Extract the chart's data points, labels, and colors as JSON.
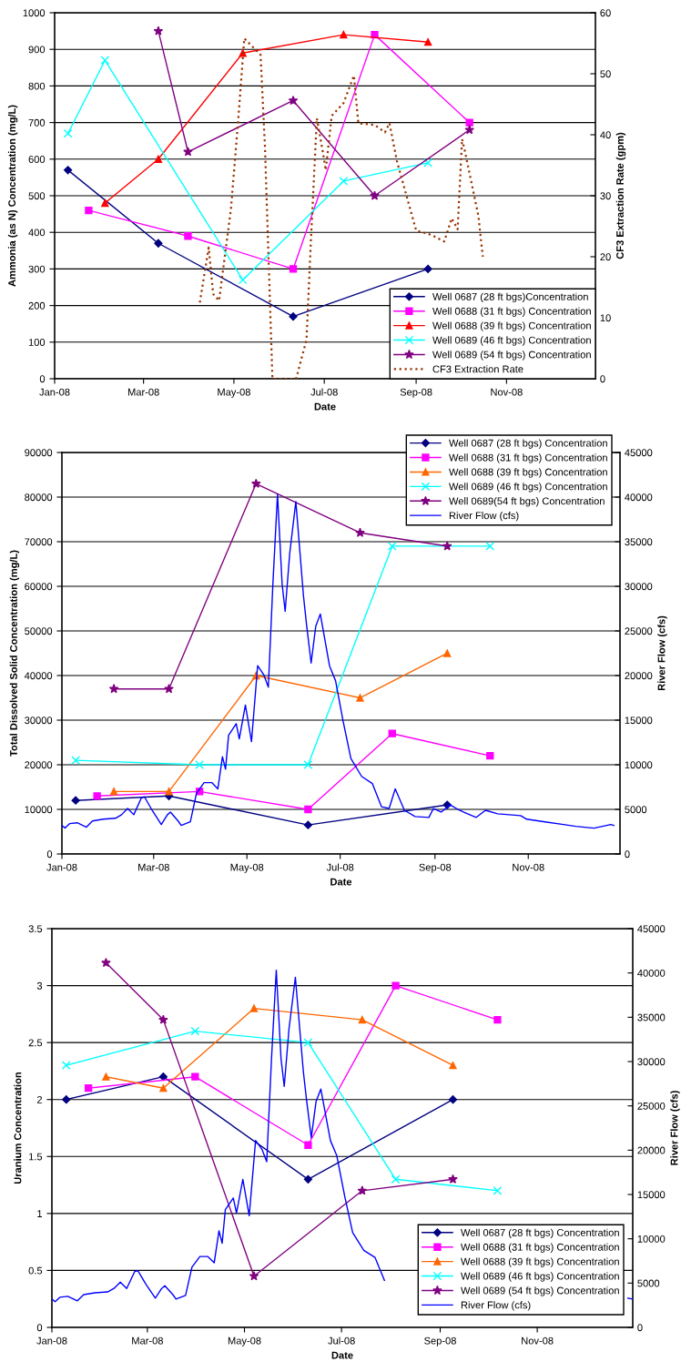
{
  "chart_data": [
    {
      "type": "line",
      "xlabel": "Date",
      "ylabel": "Ammonia (as N) Concentration (mg/L)",
      "y2label": "CF3 Extraction Rate (gpm)",
      "xlim": [
        "2008-01-01",
        "2008-12-31"
      ],
      "xticks": [
        {
          "value": "2008-01-01",
          "label": "Jan-08"
        },
        {
          "value": "2008-03-01",
          "label": "Mar-08"
        },
        {
          "value": "2008-05-01",
          "label": "May-08"
        },
        {
          "value": "2008-07-01",
          "label": "Jul-08"
        },
        {
          "value": "2008-09-01",
          "label": "Sep-08"
        },
        {
          "value": "2008-11-01",
          "label": "Nov-08"
        }
      ],
      "ylim": [
        0,
        1000
      ],
      "yticks": [
        0,
        100,
        200,
        300,
        400,
        500,
        600,
        700,
        800,
        900,
        1000
      ],
      "y2lim": [
        0,
        60
      ],
      "y2ticks": [
        0,
        10,
        20,
        30,
        40,
        50,
        60
      ],
      "grid": "y",
      "legend": "bottom right",
      "series": [
        {
          "name": "Well 0687 (28 ft bgs)Concentration",
          "color": "#000080",
          "marker": "diamond",
          "x": [
            "2008-01-10",
            "2008-03-11",
            "2008-06-10",
            "2008-09-09"
          ],
          "values": [
            570,
            370,
            170,
            300
          ]
        },
        {
          "name": "Well 0688 (31 ft bgs) Concentration",
          "color": "#ff00ff",
          "marker": "square",
          "x": [
            "2008-01-24",
            "2008-03-31",
            "2008-06-10",
            "2008-08-04",
            "2008-10-07"
          ],
          "values": [
            460,
            390,
            300,
            940,
            700
          ]
        },
        {
          "name": "Well 0688 (39 ft bgs) Concentration",
          "color": "#ff0000",
          "marker": "triangle",
          "x": [
            "2008-02-04",
            "2008-03-11",
            "2008-05-07",
            "2008-07-14",
            "2008-09-09"
          ],
          "values": [
            480,
            600,
            890,
            940,
            920
          ]
        },
        {
          "name": "Well 0689 (46 ft bgs) Concentration",
          "color": "#00ffff",
          "marker": "cross",
          "x": [
            "2008-01-10",
            "2008-02-04",
            "2008-05-07",
            "2008-07-14",
            "2008-09-09"
          ],
          "values": [
            670,
            870,
            270,
            540,
            590
          ]
        },
        {
          "name": "Well 0689 (54 ft bgs) Concentration",
          "color": "#800080",
          "marker": "star",
          "x": [
            "2008-03-11",
            "2008-03-31",
            "2008-06-10",
            "2008-08-04",
            "2008-10-07"
          ],
          "values": [
            950,
            620,
            760,
            500,
            680
          ]
        },
        {
          "name": "CF3 Extraction Rate",
          "color": "#993300",
          "marker": "none",
          "line_style": "dotted",
          "axis": "y2",
          "x": [
            "2008-04-08",
            "2008-04-14",
            "2008-04-17",
            "2008-04-21",
            "2008-04-29",
            "2008-05-04",
            "2008-05-08",
            "2008-05-19",
            "2008-05-22",
            "2008-05-27",
            "2008-06-12",
            "2008-06-19",
            "2008-06-22",
            "2008-06-26",
            "2008-06-30",
            "2008-07-02",
            "2008-07-06",
            "2008-07-14",
            "2008-07-21",
            "2008-07-24",
            "2008-08-04",
            "2008-08-11",
            "2008-08-14",
            "2008-08-19",
            "2008-09-01",
            "2008-09-11",
            "2008-09-20",
            "2008-09-25",
            "2008-09-29",
            "2008-10-02",
            "2008-10-04",
            "2008-10-13",
            "2008-10-16"
          ],
          "values": [
            12.5,
            21.5,
            13.9,
            12.8,
            27.8,
            42.7,
            55.8,
            53.1,
            37.8,
            0,
            0,
            6.4,
            22.8,
            42.7,
            37.2,
            34.2,
            43.1,
            45.2,
            49.7,
            41.9,
            41.6,
            40.4,
            41.9,
            35.7,
            24.3,
            23.6,
            22.5,
            26.3,
            24.5,
            39.3,
            37.2,
            26.7,
            20
          ]
        }
      ]
    },
    {
      "type": "line",
      "xlabel": "Date",
      "ylabel": "Total Dissolved Solid Concentration (mg/L)",
      "y2label": "River Flow (cfs)",
      "xlim": [
        "2008-01-01",
        "2008-12-31"
      ],
      "xticks": [
        {
          "value": "2008-01-01",
          "label": "Jan-08"
        },
        {
          "value": "2008-03-01",
          "label": "Mar-08"
        },
        {
          "value": "2008-05-01",
          "label": "May-08"
        },
        {
          "value": "2008-07-01",
          "label": "Jul-08"
        },
        {
          "value": "2008-09-01",
          "label": "Sep-08"
        },
        {
          "value": "2008-11-01",
          "label": "Nov-08"
        }
      ],
      "ylim": [
        0,
        90000
      ],
      "yticks": [
        0,
        10000,
        20000,
        30000,
        40000,
        50000,
        60000,
        70000,
        80000,
        90000
      ],
      "y2lim": [
        0,
        45000
      ],
      "y2ticks": [
        0,
        5000,
        10000,
        15000,
        20000,
        25000,
        30000,
        35000,
        40000,
        45000
      ],
      "grid": "y",
      "legend": "top right",
      "series": [
        {
          "name": "Well 0687 (28 ft bgs) Concentration",
          "color": "#000080",
          "marker": "diamond",
          "x": [
            "2008-01-10",
            "2008-03-11",
            "2008-06-10",
            "2008-09-09"
          ],
          "values": [
            12000,
            13000,
            6500,
            11000
          ]
        },
        {
          "name": "Well 0688 (31 ft bgs) Concentration",
          "color": "#ff00ff",
          "marker": "square",
          "x": [
            "2008-01-24",
            "2008-03-31",
            "2008-06-10",
            "2008-08-04",
            "2008-10-07"
          ],
          "values": [
            13000,
            14000,
            10000,
            27000,
            22000
          ]
        },
        {
          "name": "Well 0688 (39 ft bgs) Concentration",
          "color": "#ff6600",
          "marker": "triangle",
          "x": [
            "2008-02-04",
            "2008-03-11",
            "2008-05-07",
            "2008-07-14",
            "2008-09-09"
          ],
          "values": [
            14000,
            14000,
            40000,
            35000,
            45000
          ]
        },
        {
          "name": "Well 0689 (46 ft bgs) Concentration",
          "color": "#00ffff",
          "marker": "cross",
          "x": [
            "2008-01-10",
            "2008-03-31",
            "2008-06-10",
            "2008-08-04",
            "2008-10-07"
          ],
          "values": [
            21000,
            20000,
            20000,
            69000,
            69000
          ]
        },
        {
          "name": "Well 0689(54 ft bgs) Concentration",
          "color": "#800080",
          "marker": "star",
          "x": [
            "2008-02-04",
            "2008-03-11",
            "2008-05-07",
            "2008-07-14",
            "2008-09-09"
          ],
          "values": [
            37000,
            37000,
            83000,
            72000,
            69000
          ]
        },
        {
          "name": "River Flow (cfs)",
          "color": "#0000ff",
          "marker": "none",
          "axis": "y2",
          "x": [
            "2008-01-01",
            "2008-01-03",
            "2008-01-06",
            "2008-01-11",
            "2008-01-17",
            "2008-01-21",
            "2008-01-28",
            "2008-02-05",
            "2008-02-09",
            "2008-02-13",
            "2008-02-17",
            "2008-02-22",
            "2008-02-24",
            "2008-02-29",
            "2008-03-06",
            "2008-03-10",
            "2008-03-12",
            "2008-03-17",
            "2008-03-19",
            "2008-03-25",
            "2008-03-29",
            "2008-04-03",
            "2008-04-08",
            "2008-04-12",
            "2008-04-15",
            "2008-04-17",
            "2008-04-19",
            "2008-04-24",
            "2008-04-26",
            "2008-04-30",
            "2008-05-04",
            "2008-05-08",
            "2008-05-12",
            "2008-05-15",
            "2008-05-18",
            "2008-05-21",
            "2008-05-24",
            "2008-05-26",
            "2008-05-29",
            "2008-06-02",
            "2008-06-07",
            "2008-06-09",
            "2008-06-12",
            "2008-06-15",
            "2008-06-18",
            "2008-06-24",
            "2008-06-28",
            "2008-07-03",
            "2008-07-08",
            "2008-07-15",
            "2008-07-22",
            "2008-07-28",
            "2008-08-02",
            "2008-08-06",
            "2008-08-12",
            "2008-08-19",
            "2008-08-28",
            "2008-08-31",
            "2008-09-05",
            "2008-09-11",
            "2008-09-17",
            "2008-09-28",
            "2008-10-04",
            "2008-10-12",
            "2008-10-27",
            "2008-10-31",
            "2008-11-12",
            "2008-11-24",
            "2008-12-02",
            "2008-12-14",
            "2008-12-25",
            "2008-12-27"
          ],
          "values": [
            3200,
            2900,
            3400,
            3500,
            3000,
            3700,
            3900,
            4000,
            4400,
            5100,
            4400,
            6300,
            6400,
            4900,
            3300,
            4400,
            4700,
            3700,
            3200,
            3600,
            6800,
            8000,
            8000,
            7300,
            10900,
            9500,
            13300,
            14600,
            12900,
            16700,
            12600,
            21100,
            20100,
            18700,
            30300,
            40300,
            30300,
            27200,
            33700,
            39500,
            28900,
            25700,
            21400,
            25500,
            26900,
            21100,
            19400,
            14800,
            10700,
            8700,
            7900,
            5300,
            5100,
            7300,
            4900,
            4200,
            4100,
            5100,
            4700,
            5500,
            4900,
            4100,
            4900,
            4500,
            4300,
            3900,
            3600,
            3300,
            3100,
            2900,
            3300,
            3200
          ]
        }
      ]
    },
    {
      "type": "line",
      "xlabel": "Date",
      "ylabel": "Uranium Concentration",
      "y2label": "River Flow (cfs)",
      "xlim": [
        "2008-01-01",
        "2008-12-31"
      ],
      "xticks": [
        {
          "value": "2008-01-01",
          "label": "Jan-08"
        },
        {
          "value": "2008-03-01",
          "label": "Mar-08"
        },
        {
          "value": "2008-05-01",
          "label": "May-08"
        },
        {
          "value": "2008-07-01",
          "label": "Jul-08"
        },
        {
          "value": "2008-09-01",
          "label": "Sep-08"
        },
        {
          "value": "2008-11-01",
          "label": "Nov-08"
        }
      ],
      "ylim": [
        0,
        3.5
      ],
      "yticks": [
        0,
        0.5,
        1,
        1.5,
        2,
        2.5,
        3,
        3.5
      ],
      "y2lim": [
        0,
        45000
      ],
      "y2ticks": [
        0,
        5000,
        10000,
        15000,
        20000,
        25000,
        30000,
        35000,
        40000,
        45000
      ],
      "grid": "y",
      "legend": "bottom right",
      "series": [
        {
          "name": "Well 0687 (28 ft bgs) Concentration",
          "color": "#000080",
          "marker": "diamond",
          "x": [
            "2008-01-10",
            "2008-03-11",
            "2008-06-10",
            "2008-09-09"
          ],
          "values": [
            2.0,
            2.2,
            1.3,
            2.0
          ]
        },
        {
          "name": "Well 0688 (31 ft bgs) Concentration",
          "color": "#ff00ff",
          "marker": "square",
          "x": [
            "2008-01-24",
            "2008-03-31",
            "2008-06-10",
            "2008-08-04",
            "2008-10-07"
          ],
          "values": [
            2.1,
            2.2,
            1.6,
            3.0,
            2.7
          ]
        },
        {
          "name": "Well 0688 (39 ft bgs) Concentration",
          "color": "#ff6600",
          "marker": "triangle",
          "x": [
            "2008-02-04",
            "2008-03-11",
            "2008-05-07",
            "2008-07-14",
            "2008-09-09"
          ],
          "values": [
            2.2,
            2.1,
            2.8,
            2.7,
            2.3
          ]
        },
        {
          "name": "Well 0689 (46 ft bgs) Concentration",
          "color": "#00ffff",
          "marker": "cross",
          "x": [
            "2008-01-10",
            "2008-03-31",
            "2008-06-10",
            "2008-08-04",
            "2008-10-07"
          ],
          "values": [
            2.3,
            2.6,
            2.5,
            1.3,
            1.2
          ]
        },
        {
          "name": "Well 0689 (54 ft bgs) Concentration",
          "color": "#800080",
          "marker": "star",
          "x": [
            "2008-02-04",
            "2008-03-11",
            "2008-05-07",
            "2008-07-14",
            "2008-09-09"
          ],
          "values": [
            3.2,
            2.7,
            0.45,
            1.2,
            1.3
          ]
        },
        {
          "name": "River Flow (cfs)",
          "color": "#0000ff",
          "marker": "none",
          "axis": "y2",
          "x": [
            "2008-01-01",
            "2008-01-03",
            "2008-01-06",
            "2008-01-11",
            "2008-01-17",
            "2008-01-21",
            "2008-01-28",
            "2008-02-05",
            "2008-02-09",
            "2008-02-13",
            "2008-02-17",
            "2008-02-22",
            "2008-02-24",
            "2008-02-29",
            "2008-03-06",
            "2008-03-10",
            "2008-03-12",
            "2008-03-17",
            "2008-03-19",
            "2008-03-25",
            "2008-03-29",
            "2008-04-03",
            "2008-04-08",
            "2008-04-12",
            "2008-04-15",
            "2008-04-17",
            "2008-04-19",
            "2008-04-24",
            "2008-04-26",
            "2008-04-30",
            "2008-05-04",
            "2008-05-08",
            "2008-05-12",
            "2008-05-15",
            "2008-05-18",
            "2008-05-21",
            "2008-05-24",
            "2008-05-26",
            "2008-05-29",
            "2008-06-02",
            "2008-06-07",
            "2008-06-09",
            "2008-06-12",
            "2008-06-15",
            "2008-06-18",
            "2008-06-24",
            "2008-06-28",
            "2008-07-03",
            "2008-07-08",
            "2008-07-15",
            "2008-07-22",
            "2008-07-28",
            "2008-08-02",
            "2008-08-06",
            "2008-08-12",
            "2008-08-19",
            "2008-08-28",
            "2008-08-31",
            "2008-09-05",
            "2008-09-11",
            "2008-09-17",
            "2008-09-28",
            "2008-10-04",
            "2008-10-12",
            "2008-10-27",
            "2008-10-31",
            "2008-11-12",
            "2008-11-24",
            "2008-12-02",
            "2008-12-14",
            "2008-12-28",
            "2008-12-31"
          ],
          "values": [
            3200,
            2900,
            3400,
            3500,
            3000,
            3700,
            3900,
            4000,
            4400,
            5100,
            4400,
            6300,
            6400,
            4900,
            3300,
            4400,
            4700,
            3700,
            3200,
            3600,
            6800,
            8000,
            8000,
            7300,
            10900,
            9500,
            13300,
            14600,
            12900,
            16700,
            12600,
            21100,
            20100,
            18700,
            30300,
            40300,
            30300,
            27200,
            33700,
            39500,
            28900,
            25700,
            21400,
            25500,
            26900,
            21100,
            19400,
            14800,
            10700,
            8700,
            7900,
            5300,
            null,
            null,
            null,
            null,
            null,
            null,
            null,
            null,
            null,
            null,
            null,
            null,
            null,
            null,
            null,
            null,
            null,
            null,
            3300,
            3200
          ]
        }
      ]
    }
  ]
}
